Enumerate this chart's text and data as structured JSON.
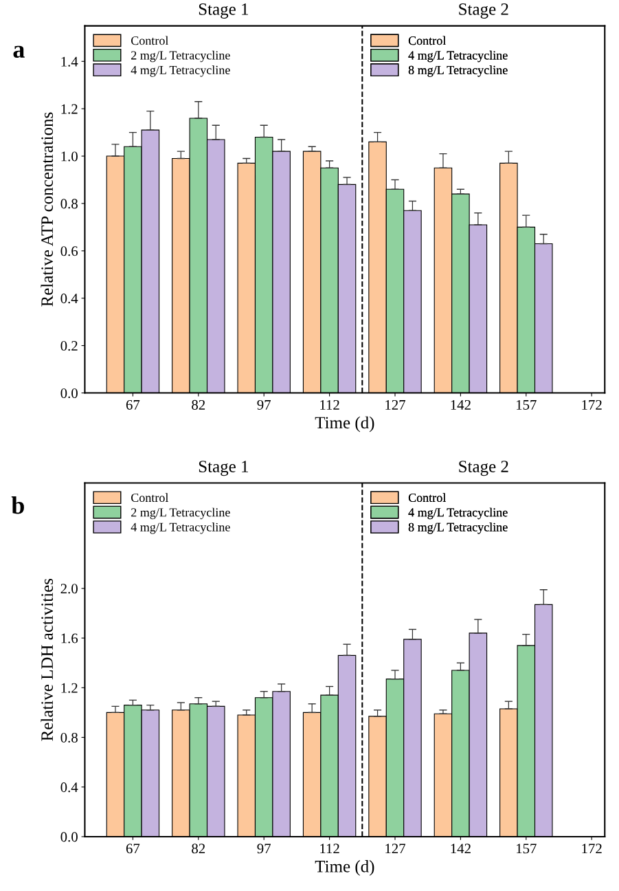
{
  "chart_data": [
    {
      "type": "bar",
      "ylabel": "Relative ATP concentrations",
      "xlabel": "Time (d)",
      "annotations": [
        "a",
        "Stage 1",
        "Stage 2"
      ],
      "x": [
        67,
        82,
        97,
        112,
        127,
        142,
        157
      ],
      "xlim": [
        56,
        175
      ],
      "xticks": [
        67,
        82,
        97,
        112,
        127,
        142,
        157,
        172
      ],
      "ylim": [
        0,
        1.55
      ],
      "yticks": [
        {
          "value": 0,
          "label": "0.0"
        },
        {
          "value": 0.2,
          "label": "0.2"
        },
        {
          "value": 0.4,
          "label": "0.4"
        },
        {
          "value": 0.6,
          "label": "0.6"
        },
        {
          "value": 0.8,
          "label": "0.8"
        },
        {
          "value": 1,
          "label": "1.0"
        },
        {
          "value": 1.2,
          "label": "1.2"
        },
        {
          "value": 1.4,
          "label": "1.4"
        }
      ],
      "ref_lines": [
        {
          "axis": "x",
          "value": 119.5,
          "line_style": "dashed",
          "color": "#000000"
        }
      ],
      "legend": "top left",
      "grid": false,
      "series": [
        {
          "name": "Control",
          "color": "#fdc79a",
          "values": [
            1.0,
            0.99,
            0.97,
            1.02,
            null,
            null,
            null
          ],
          "errors": [
            0.05,
            0.03,
            0.02,
            0.02,
            null,
            null,
            null
          ]
        },
        {
          "name": "2 mg/L Tetracycline",
          "color": "#8fd19e",
          "values": [
            1.04,
            1.16,
            1.08,
            0.95,
            null,
            null,
            null
          ],
          "errors": [
            0.06,
            0.07,
            0.05,
            0.03,
            null,
            null,
            null
          ]
        },
        {
          "name": "4 mg/L Tetracycline",
          "color": "#c4b3df",
          "values": [
            1.11,
            1.07,
            1.02,
            0.88,
            null,
            null,
            null
          ],
          "errors": [
            0.08,
            0.06,
            0.05,
            0.03,
            null,
            null,
            null
          ]
        },
        {
          "name": "Control",
          "color": "#fdc79a",
          "values": [
            null,
            null,
            null,
            null,
            1.06,
            0.95,
            0.97
          ],
          "errors": [
            null,
            null,
            null,
            null,
            0.04,
            0.06,
            0.05
          ]
        },
        {
          "name": "4 mg/L Tetracycline",
          "color": "#8fd19e",
          "values": [
            null,
            null,
            null,
            null,
            0.86,
            0.84,
            0.7
          ],
          "errors": [
            null,
            null,
            null,
            null,
            0.04,
            0.02,
            0.05
          ]
        },
        {
          "name": "8 mg/L Tetracycline",
          "color": "#c4b3df",
          "values": [
            null,
            null,
            null,
            null,
            0.77,
            0.71,
            0.63
          ],
          "errors": [
            null,
            null,
            null,
            null,
            0.04,
            0.05,
            0.04
          ]
        }
      ]
    },
    {
      "type": "bar",
      "ylabel": "Relative LDH activities",
      "xlabel": "Time (d)",
      "annotations": [
        "b",
        "Stage 1",
        "Stage 2"
      ],
      "x": [
        67,
        82,
        97,
        112,
        127,
        142,
        157
      ],
      "xlim": [
        56,
        175
      ],
      "xticks": [
        67,
        82,
        97,
        112,
        127,
        142,
        157,
        172
      ],
      "ylim": [
        0,
        2.85
      ],
      "yticks": [
        {
          "value": 0,
          "label": "0.0"
        },
        {
          "value": 0.4,
          "label": "0.4"
        },
        {
          "value": 0.8,
          "label": "0.8"
        },
        {
          "value": 1.2,
          "label": "1.2"
        },
        {
          "value": 1.6,
          "label": "1.6"
        },
        {
          "value": 2,
          "label": "2.0"
        }
      ],
      "ref_lines": [
        {
          "axis": "x",
          "value": 119.5,
          "line_style": "dashed",
          "color": "#000000"
        }
      ],
      "legend": "top left",
      "grid": false,
      "series": [
        {
          "name": "Control",
          "color": "#fdc79a",
          "values": [
            1.0,
            1.02,
            0.98,
            1.0,
            null,
            null,
            null
          ],
          "errors": [
            0.05,
            0.06,
            0.04,
            0.07,
            null,
            null,
            null
          ]
        },
        {
          "name": "2 mg/L Tetracycline",
          "color": "#8fd19e",
          "values": [
            1.06,
            1.07,
            1.12,
            1.14,
            null,
            null,
            null
          ],
          "errors": [
            0.04,
            0.05,
            0.05,
            0.07,
            null,
            null,
            null
          ]
        },
        {
          "name": "4 mg/L Tetracycline",
          "color": "#c4b3df",
          "values": [
            1.02,
            1.05,
            1.17,
            1.46,
            null,
            null,
            null
          ],
          "errors": [
            0.04,
            0.04,
            0.06,
            0.09,
            null,
            null,
            null
          ]
        },
        {
          "name": "Control",
          "color": "#fdc79a",
          "values": [
            null,
            null,
            null,
            null,
            0.97,
            0.99,
            1.03
          ],
          "errors": [
            null,
            null,
            null,
            null,
            0.05,
            0.03,
            0.06
          ]
        },
        {
          "name": "4 mg/L Tetracycline",
          "color": "#8fd19e",
          "values": [
            null,
            null,
            null,
            null,
            1.27,
            1.34,
            1.54
          ],
          "errors": [
            null,
            null,
            null,
            null,
            0.07,
            0.06,
            0.09
          ]
        },
        {
          "name": "8 mg/L Tetracycline",
          "color": "#c4b3df",
          "values": [
            null,
            null,
            null,
            null,
            1.59,
            1.64,
            1.87
          ],
          "errors": [
            null,
            null,
            null,
            null,
            0.08,
            0.11,
            0.12
          ]
        }
      ]
    }
  ]
}
